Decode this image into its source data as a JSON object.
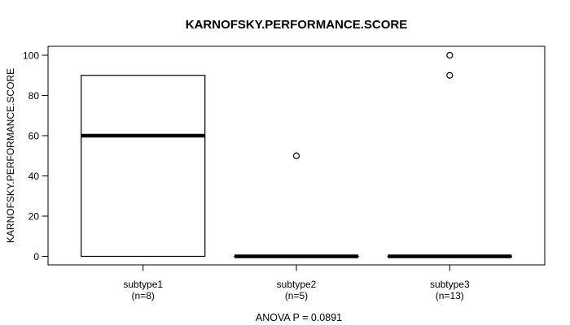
{
  "chart_data": {
    "type": "boxplot",
    "title": "KARNOFSKY.PERFORMANCE.SCORE",
    "ylabel": "KARNOFSKY.PERFORMANCE.SCORE",
    "annotation": "ANOVA P = 0.0891",
    "ylim": [
      0,
      100
    ],
    "yticks": [
      0,
      20,
      40,
      60,
      80,
      100
    ],
    "grid": false,
    "legend": "none",
    "categories": [
      "subtype1",
      "subtype2",
      "subtype3"
    ],
    "groups": [
      {
        "label": "subtype1",
        "count_label": "(n=8)",
        "n": 8,
        "whisker_low": 0,
        "q1": 0,
        "median": 60,
        "q3": 90,
        "whisker_high": 90,
        "outliers": []
      },
      {
        "label": "subtype2",
        "count_label": "(n=5)",
        "n": 5,
        "whisker_low": 0,
        "q1": 0,
        "median": 0,
        "q3": 0,
        "whisker_high": 0,
        "outliers": [
          50
        ]
      },
      {
        "label": "subtype3",
        "count_label": "(n=13)",
        "n": 13,
        "whisker_low": 0,
        "q1": 0,
        "median": 0,
        "q3": 0,
        "whisker_high": 0,
        "outliers": [
          100,
          90
        ]
      }
    ],
    "colors": {
      "stroke": "#000000",
      "box_fill": "#ffffff",
      "background": "#ffffff"
    }
  }
}
